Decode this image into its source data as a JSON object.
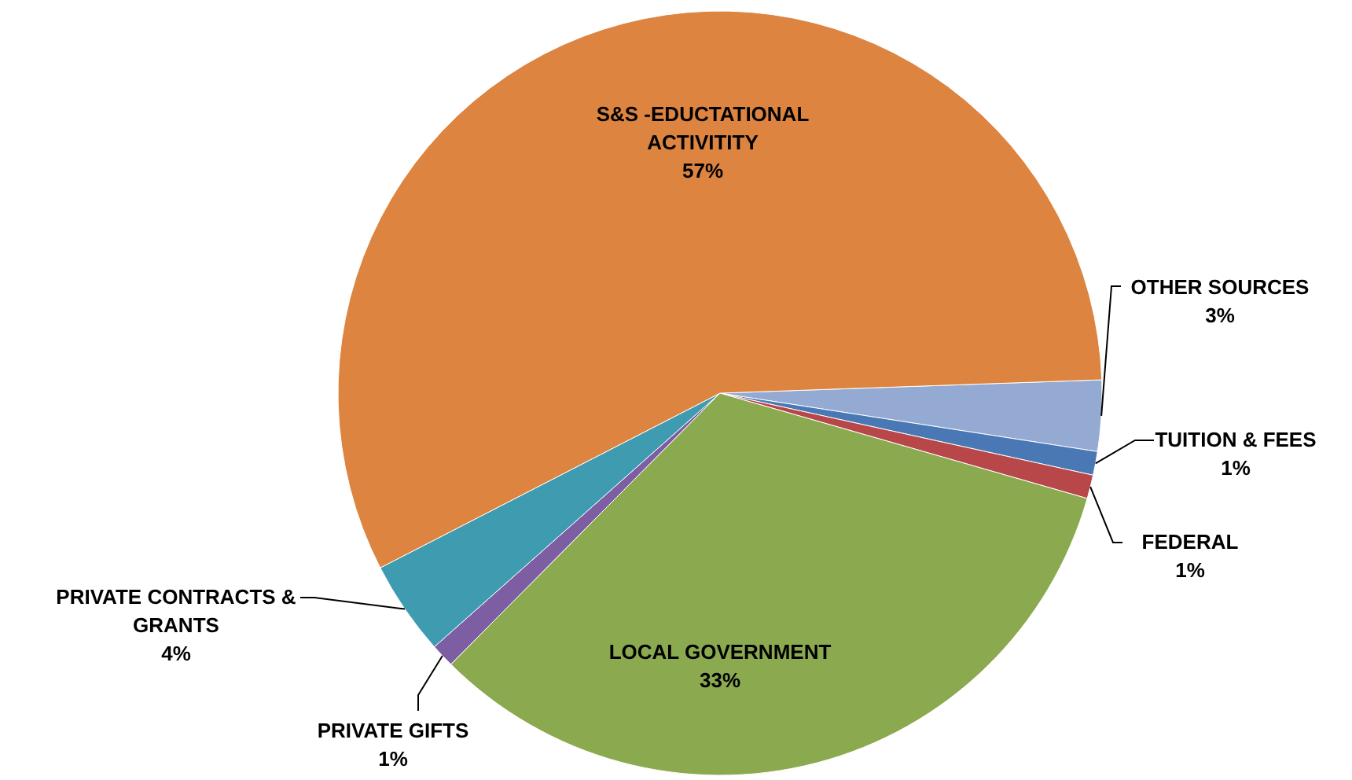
{
  "chart_data": {
    "type": "pie",
    "categories": [
      "OTHER SOURCES",
      "TUITION & FEES",
      "FEDERAL",
      "LOCAL GOVERNMENT",
      "PRIVATE GIFTS",
      "PRIVATE CONTRACTS & GRANTS",
      "S&S -EDUCTATIONAL ACTIVITITY"
    ],
    "values": [
      3,
      1,
      1,
      33,
      1,
      4,
      57
    ],
    "value_labels": [
      "3%",
      "1%",
      "1%",
      "33%",
      "1%",
      "4%",
      "57%"
    ],
    "colors": [
      "#94aad3",
      "#4a78b5",
      "#b8474a",
      "#8ba94e",
      "#7d5ea3",
      "#3e9bb0",
      "#dc8440"
    ]
  }
}
